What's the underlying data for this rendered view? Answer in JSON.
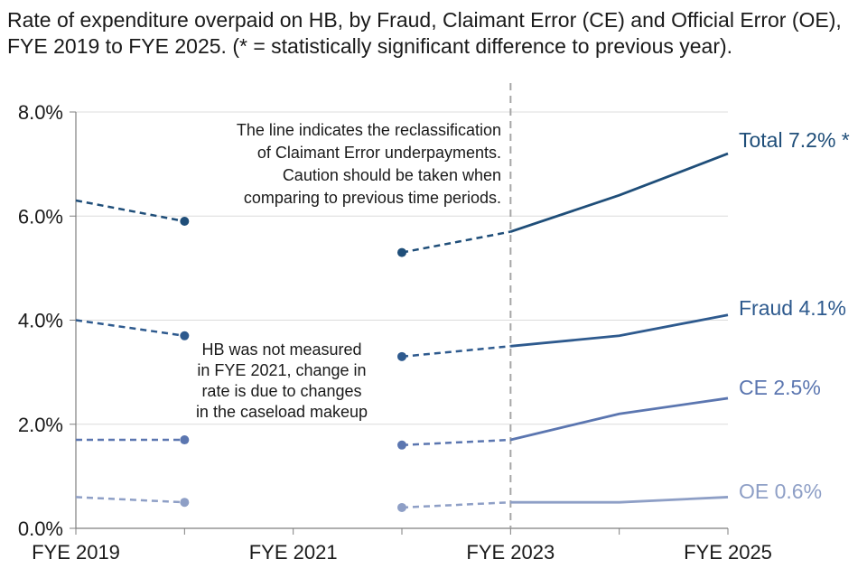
{
  "chart_data": {
    "type": "line",
    "title": "Rate of expenditure overpaid on HB, by Fraud, Claimant Error (CE) and Official Error (OE), FYE 2019 to FYE 2025. (* = statistically significant difference to previous year).",
    "xlabel": "",
    "ylabel": "",
    "x": [
      "FYE 2019",
      "FYE 2020",
      "FYE 2021",
      "FYE 2022",
      "FYE 2023",
      "FYE 2024",
      "FYE 2025"
    ],
    "x_tick_labels": [
      "FYE 2019",
      "FYE 2021",
      "FYE 2023",
      "FYE 2025"
    ],
    "ylim": [
      0,
      8
    ],
    "y_ticks": [
      "0.0%",
      "2.0%",
      "4.0%",
      "6.0%",
      "8.0%"
    ],
    "grid": "horizontal",
    "reclassification_marker": "FYE 2023",
    "series": [
      {
        "name": "Total",
        "end_label": "Total 7.2% *",
        "color": "#1f4e79",
        "old_method": [
          {
            "x": "FYE 2019",
            "y": 6.3
          },
          {
            "x": "FYE 2020",
            "y": 5.9
          }
        ],
        "new_method": [
          {
            "x": "FYE 2022",
            "y": 5.3
          },
          {
            "x": "FYE 2023",
            "y": 5.7
          },
          {
            "x": "FYE 2024",
            "y": 6.4
          },
          {
            "x": "FYE 2025",
            "y": 7.2
          }
        ]
      },
      {
        "name": "Fraud",
        "end_label": "Fraud 4.1%",
        "color": "#2e5a8e",
        "old_method": [
          {
            "x": "FYE 2019",
            "y": 4.0
          },
          {
            "x": "FYE 2020",
            "y": 3.7
          }
        ],
        "new_method": [
          {
            "x": "FYE 2022",
            "y": 3.3
          },
          {
            "x": "FYE 2023",
            "y": 3.5
          },
          {
            "x": "FYE 2024",
            "y": 3.7
          },
          {
            "x": "FYE 2025",
            "y": 4.1
          }
        ]
      },
      {
        "name": "CE",
        "end_label": "CE 2.5%",
        "color": "#5b76b0",
        "old_method": [
          {
            "x": "FYE 2019",
            "y": 1.7
          },
          {
            "x": "FYE 2020",
            "y": 1.7
          }
        ],
        "new_method": [
          {
            "x": "FYE 2022",
            "y": 1.6
          },
          {
            "x": "FYE 2023",
            "y": 1.7
          },
          {
            "x": "FYE 2024",
            "y": 2.2
          },
          {
            "x": "FYE 2025",
            "y": 2.5
          }
        ]
      },
      {
        "name": "OE",
        "end_label": "OE 0.6%",
        "color": "#8e9fc6",
        "old_method": [
          {
            "x": "FYE 2019",
            "y": 0.6
          },
          {
            "x": "FYE 2020",
            "y": 0.5
          }
        ],
        "new_method": [
          {
            "x": "FYE 2022",
            "y": 0.4
          },
          {
            "x": "FYE 2023",
            "y": 0.5
          },
          {
            "x": "FYE 2024",
            "y": 0.5
          },
          {
            "x": "FYE 2025",
            "y": 0.6
          }
        ]
      }
    ],
    "annotations": [
      {
        "id": "reclass-note",
        "lines": [
          "The line indicates the reclassification",
          "of Claimant Error underpayments.",
          "Caution should be taken when",
          "comparing to previous time periods."
        ]
      },
      {
        "id": "hb-note",
        "lines": [
          "HB was not measured",
          "in FYE 2021, change in",
          "rate is due to changes",
          "in the caseload makeup"
        ]
      }
    ]
  }
}
